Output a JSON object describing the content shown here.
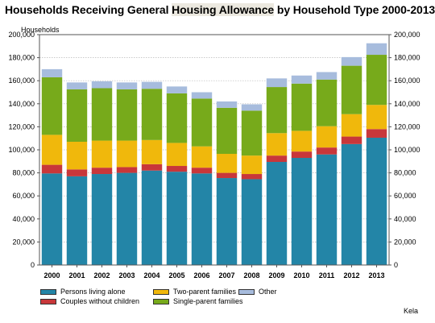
{
  "title": {
    "before": "Households Receiving General ",
    "highlight": "Housing Allowance",
    "after": " by Household Type 2000-2013"
  },
  "source": "Kela",
  "colors": {
    "persons_living_alone": "#2385a7",
    "couples_without_children": "#c8373a",
    "two_parent_families": "#f0b80c",
    "single_parent_families": "#77aa1b",
    "other": "#a7bcdd"
  },
  "chart_data": {
    "type": "bar",
    "stacked": true,
    "ylabel": "Households",
    "ylim": [
      0,
      200000
    ],
    "yticks": [
      "0",
      "20,000",
      "40,000",
      "60,000",
      "80,000",
      "100,000",
      "120,000",
      "140,000",
      "160,000",
      "180,000",
      "200,000"
    ],
    "grid": true,
    "dual_y_axis": true,
    "categories": [
      "2000",
      "2001",
      "2002",
      "2003",
      "2004",
      "2005",
      "2006",
      "2007",
      "2008",
      "2009",
      "2010",
      "2011",
      "2012",
      "2013"
    ],
    "series": [
      {
        "name": "Persons living alone",
        "color_key": "persons_living_alone",
        "values": [
          79500,
          77000,
          79000,
          80000,
          82000,
          81000,
          79500,
          75500,
          74500,
          89500,
          93000,
          96000,
          105000,
          110500
        ]
      },
      {
        "name": "Couples without children",
        "color_key": "couples_without_children",
        "values": [
          7500,
          6000,
          5500,
          5000,
          5500,
          5000,
          5000,
          4500,
          4500,
          5500,
          5500,
          6000,
          6500,
          7500
        ]
      },
      {
        "name": "Two-parent families",
        "color_key": "two_parent_families",
        "values": [
          26000,
          24000,
          23500,
          23000,
          21000,
          20000,
          18500,
          16500,
          16000,
          19500,
          18000,
          18500,
          19500,
          21000
        ]
      },
      {
        "name": "Single-parent families",
        "color_key": "single_parent_families",
        "values": [
          50000,
          45500,
          45500,
          44500,
          44500,
          43000,
          41500,
          40000,
          39000,
          40000,
          41000,
          40500,
          42000,
          43500
        ]
      },
      {
        "name": "Other",
        "color_key": "other",
        "values": [
          7000,
          6000,
          6000,
          6000,
          6000,
          6000,
          5500,
          5500,
          5500,
          7500,
          7000,
          6500,
          7500,
          10000
        ]
      }
    ],
    "legend": {
      "position": "bottom-left",
      "order": [
        "Persons living alone",
        "Two-parent families",
        "Other",
        "Couples without children",
        "Single-parent families"
      ]
    }
  }
}
